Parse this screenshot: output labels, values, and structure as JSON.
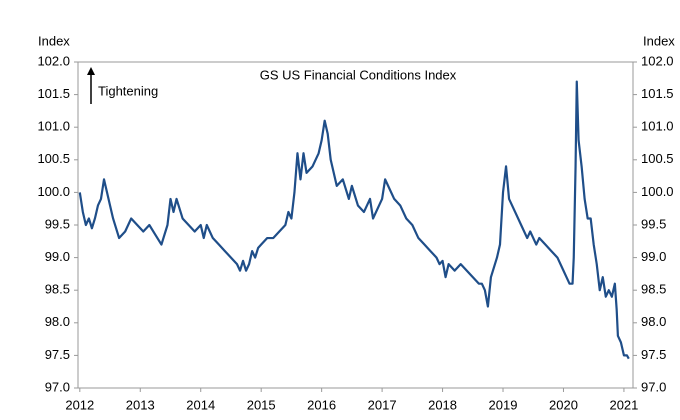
{
  "chart_data": {
    "type": "line",
    "title": "GS US Financial Conditions Index",
    "y_label": "Index",
    "y2_label": "Index",
    "annotation": "Tightening",
    "xlim": [
      2011.97,
      2021.15
    ],
    "ylim": [
      97,
      102
    ],
    "y2lim": [
      97,
      102
    ],
    "xticks": [
      2012,
      2013,
      2014,
      2015,
      2016,
      2017,
      2018,
      2019,
      2020,
      2021
    ],
    "yticks": [
      {
        "value": 97,
        "label": "97.0"
      },
      97.5,
      {
        "value": 98,
        "label": "98.0"
      },
      98.5,
      {
        "value": 99,
        "label": "99.0"
      },
      99.5,
      {
        "value": 100,
        "label": "100.0"
      },
      100.5,
      {
        "value": 101,
        "label": "101.0"
      },
      101.5,
      {
        "value": 102,
        "label": "102.0"
      }
    ],
    "y2ticks": [
      {
        "value": 97,
        "label": "97.0"
      },
      97.5,
      {
        "value": 98,
        "label": "98.0"
      },
      98.5,
      {
        "value": 99,
        "label": "99.0"
      },
      99.5,
      {
        "value": 100,
        "label": "100.0"
      },
      100.5,
      {
        "value": 101,
        "label": "101.0"
      },
      101.5,
      {
        "value": 102,
        "label": "102.0"
      }
    ],
    "grid": false,
    "series": [
      {
        "name": "GS US Financial Conditions Index",
        "color": "#1f4e89",
        "x": [
          2012.0,
          2012.05,
          2012.1,
          2012.15,
          2012.2,
          2012.25,
          2012.3,
          2012.35,
          2012.4,
          2012.45,
          2012.5,
          2012.55,
          2012.65,
          2012.75,
          2012.85,
          2012.95,
          2013.05,
          2013.15,
          2013.25,
          2013.35,
          2013.45,
          2013.5,
          2013.55,
          2013.6,
          2013.7,
          2013.8,
          2013.9,
          2014.0,
          2014.05,
          2014.1,
          2014.2,
          2014.3,
          2014.4,
          2014.5,
          2014.6,
          2014.65,
          2014.7,
          2014.75,
          2014.8,
          2014.85,
          2014.9,
          2014.95,
          2015.0,
          2015.1,
          2015.2,
          2015.3,
          2015.4,
          2015.45,
          2015.5,
          2015.55,
          2015.6,
          2015.65,
          2015.7,
          2015.75,
          2015.85,
          2015.95,
          2016.0,
          2016.05,
          2016.1,
          2016.15,
          2016.25,
          2016.35,
          2016.45,
          2016.5,
          2016.6,
          2016.7,
          2016.8,
          2016.85,
          2016.95,
          2017.0,
          2017.05,
          2017.1,
          2017.2,
          2017.3,
          2017.4,
          2017.5,
          2017.6,
          2017.7,
          2017.8,
          2017.9,
          2017.95,
          2018.0,
          2018.05,
          2018.1,
          2018.2,
          2018.3,
          2018.4,
          2018.5,
          2018.6,
          2018.65,
          2018.7,
          2018.75,
          2018.8,
          2018.9,
          2018.95,
          2019.0,
          2019.05,
          2019.1,
          2019.2,
          2019.3,
          2019.4,
          2019.45,
          2019.55,
          2019.6,
          2019.7,
          2019.8,
          2019.9,
          2020.0,
          2020.05,
          2020.1,
          2020.15,
          2020.17,
          2020.2,
          2020.22,
          2020.25,
          2020.3,
          2020.35,
          2020.4,
          2020.45,
          2020.5,
          2020.55,
          2020.6,
          2020.65,
          2020.7,
          2020.75,
          2020.8,
          2020.85,
          2020.88,
          2020.9,
          2020.95,
          2021.0,
          2021.05,
          2021.08
        ],
        "values": [
          100.0,
          99.7,
          99.5,
          99.6,
          99.45,
          99.6,
          99.8,
          99.9,
          100.2,
          100.0,
          99.8,
          99.6,
          99.3,
          99.4,
          99.6,
          99.5,
          99.4,
          99.5,
          99.35,
          99.2,
          99.5,
          99.9,
          99.7,
          99.9,
          99.6,
          99.5,
          99.4,
          99.5,
          99.3,
          99.5,
          99.3,
          99.2,
          99.1,
          99.0,
          98.9,
          98.8,
          98.95,
          98.8,
          98.9,
          99.1,
          99.0,
          99.15,
          99.2,
          99.3,
          99.3,
          99.4,
          99.5,
          99.7,
          99.6,
          100.0,
          100.6,
          100.2,
          100.6,
          100.3,
          100.4,
          100.6,
          100.8,
          101.1,
          100.9,
          100.5,
          100.1,
          100.2,
          99.9,
          100.1,
          99.8,
          99.7,
          99.9,
          99.6,
          99.8,
          99.9,
          100.2,
          100.1,
          99.9,
          99.8,
          99.6,
          99.5,
          99.3,
          99.2,
          99.1,
          99.0,
          98.9,
          98.95,
          98.7,
          98.9,
          98.8,
          98.9,
          98.8,
          98.7,
          98.6,
          98.6,
          98.5,
          98.25,
          98.7,
          99.0,
          99.2,
          100.0,
          100.4,
          99.9,
          99.7,
          99.5,
          99.3,
          99.4,
          99.2,
          99.3,
          99.2,
          99.1,
          99.0,
          98.8,
          98.7,
          98.6,
          98.6,
          99.0,
          100.4,
          101.7,
          100.8,
          100.4,
          99.9,
          99.6,
          99.6,
          99.2,
          98.9,
          98.5,
          98.7,
          98.4,
          98.5,
          98.4,
          98.6,
          98.2,
          97.8,
          97.7,
          97.5,
          97.5,
          97.45
        ]
      }
    ]
  }
}
